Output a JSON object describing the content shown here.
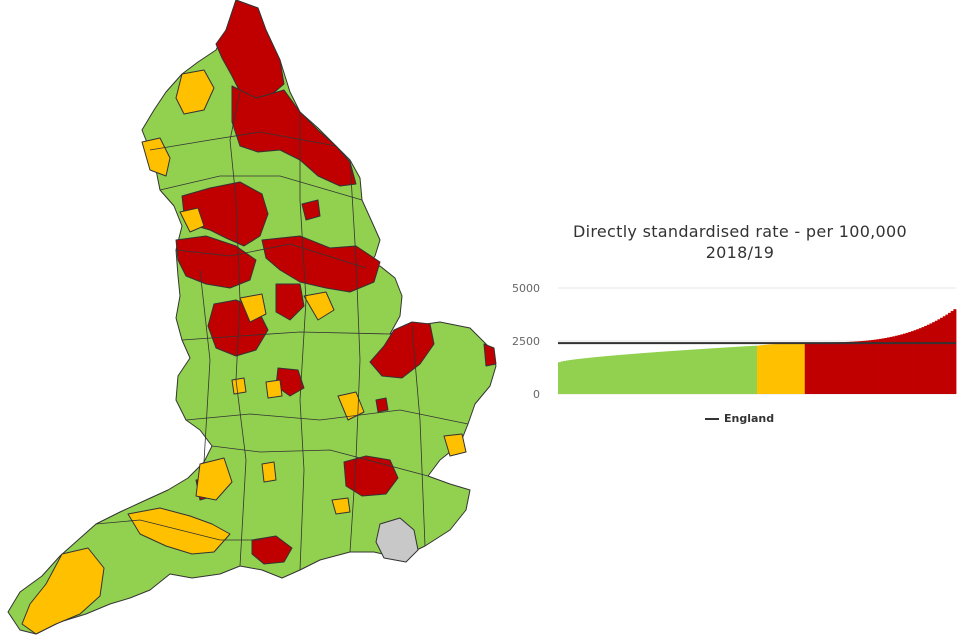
{
  "colors": {
    "better": "#92d050",
    "similar": "#ffc000",
    "worse": "#c00000",
    "not_compared": "#c8c8c8",
    "border": "#333333",
    "england_line": "#333333"
  },
  "map": {
    "icon": "england-map-icon"
  },
  "chart_data": {
    "type": "bar",
    "title": "Directly standardised rate - per 100,000",
    "subtitle": "2018/19",
    "y_ticks": [
      0,
      2500,
      5000
    ],
    "ylim": [
      0,
      5000
    ],
    "grid": true,
    "legend": {
      "entries": [
        "England"
      ],
      "position": "bottom"
    },
    "benchmark": {
      "name": "England",
      "value": 2400
    },
    "bar_count": 150,
    "segments": [
      {
        "group": "better",
        "count": 75,
        "min": 1500,
        "max": 2280
      },
      {
        "group": "similar",
        "count": 18,
        "min": 2280,
        "max": 2430
      },
      {
        "group": "worse",
        "count": 57,
        "min": 2430,
        "max": 4000
      }
    ]
  }
}
